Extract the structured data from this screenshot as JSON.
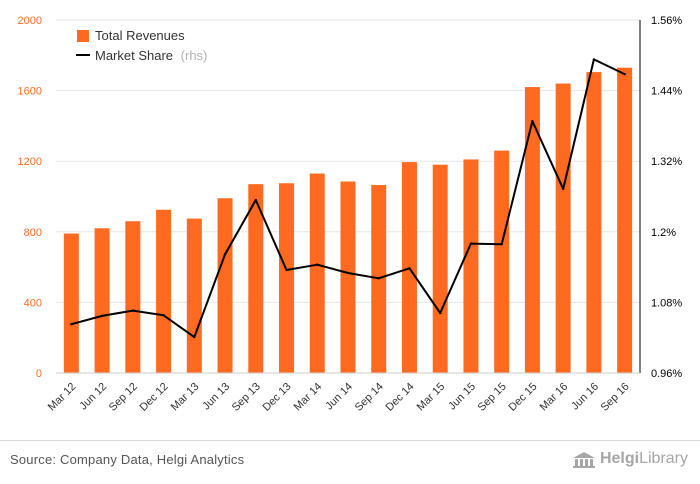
{
  "chart_data": {
    "type": "bar+line",
    "categories": [
      "Mar 12",
      "Jun 12",
      "Sep 12",
      "Dec 12",
      "Mar 13",
      "Jun 13",
      "Sep 13",
      "Dec 13",
      "Mar 14",
      "Jun 14",
      "Sep 14",
      "Dec 14",
      "Mar 15",
      "Jun 15",
      "Sep 15",
      "Dec 15",
      "Mar 16",
      "Jun 16",
      "Sep 16"
    ],
    "series": [
      {
        "name": "Total Revenues",
        "axis": "left",
        "kind": "bar",
        "color": "#ff6a21",
        "values": [
          790,
          820,
          860,
          925,
          875,
          990,
          1070,
          1075,
          1130,
          1085,
          1065,
          1195,
          1180,
          1210,
          1260,
          1620,
          1640,
          1705,
          1730
        ]
      },
      {
        "name": "Market Share",
        "name_suffix": "(rhs)",
        "axis": "right",
        "kind": "line",
        "color": "#000000",
        "values": [
          1.043,
          1.057,
          1.066,
          1.058,
          1.021,
          1.162,
          1.254,
          1.135,
          1.144,
          1.13,
          1.121,
          1.138,
          1.062,
          1.18,
          1.179,
          1.388,
          1.273,
          1.493,
          1.468
        ]
      }
    ],
    "y_left": {
      "min": 0,
      "max": 2000,
      "ticks": [
        "0",
        "400",
        "800",
        "1200",
        "1600",
        "2000"
      ],
      "color": "#ff6a21"
    },
    "y_right": {
      "min": 0.96,
      "max": 1.56,
      "ticks": [
        "0.96%",
        "1.08%",
        "1.2%",
        "1.32%",
        "1.44%",
        "1.56%"
      ],
      "color": "#000000"
    },
    "legend_position": "top-left",
    "grid": "horizontal"
  },
  "footer": {
    "source": "Source: Company Data, Helgi Analytics",
    "brand_bold": "Helgi",
    "brand_light": "Library"
  }
}
